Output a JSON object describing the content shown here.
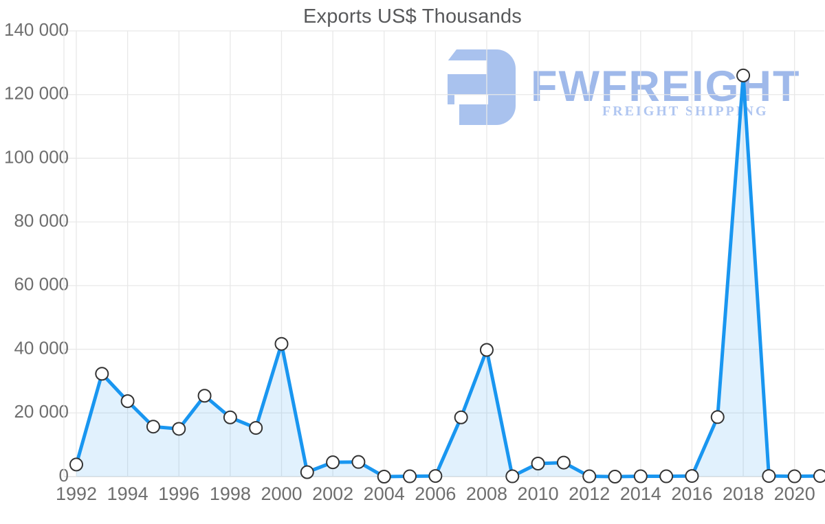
{
  "chart_data": {
    "type": "area",
    "title": "Exports US$ Thousands",
    "xlabel": "",
    "ylabel": "",
    "x": [
      1992,
      1993,
      1994,
      1995,
      1996,
      1997,
      1998,
      1999,
      2000,
      2001,
      2002,
      2003,
      2004,
      2005,
      2006,
      2007,
      2008,
      2009,
      2010,
      2011,
      2012,
      2013,
      2014,
      2015,
      2016,
      2017,
      2018,
      2019,
      2020,
      2021
    ],
    "values": [
      3800,
      32300,
      23700,
      15700,
      15000,
      25400,
      18600,
      15300,
      41700,
      1400,
      4500,
      4600,
      0,
      100,
      200,
      18600,
      39800,
      100,
      4100,
      4400,
      100,
      0,
      100,
      100,
      200,
      18700,
      126000,
      200,
      100,
      200
    ],
    "ylim": [
      0,
      140000
    ],
    "y_ticks": [
      0,
      20000,
      40000,
      60000,
      80000,
      100000,
      120000,
      140000
    ],
    "x_ticks": [
      1992,
      1994,
      1996,
      1998,
      2000,
      2002,
      2004,
      2006,
      2008,
      2010,
      2012,
      2014,
      2016,
      2018,
      2020
    ],
    "grid": "on",
    "legend": "none",
    "marker": "circle"
  },
  "watermark": {
    "brand": "FWFREIGHT",
    "tagline": "FREIGHT SHIPPING"
  },
  "colors": {
    "line": "#1996f0",
    "fill": "rgba(25,150,240,0.13)",
    "grid": "#e8e8e8",
    "baseline": "#d9d9d9",
    "axis_text": "#6e6e6e",
    "title_text": "#58595b",
    "marker_fill": "#ffffff",
    "marker_stroke": "#333333",
    "brand_shape": "#a9c2ee"
  }
}
